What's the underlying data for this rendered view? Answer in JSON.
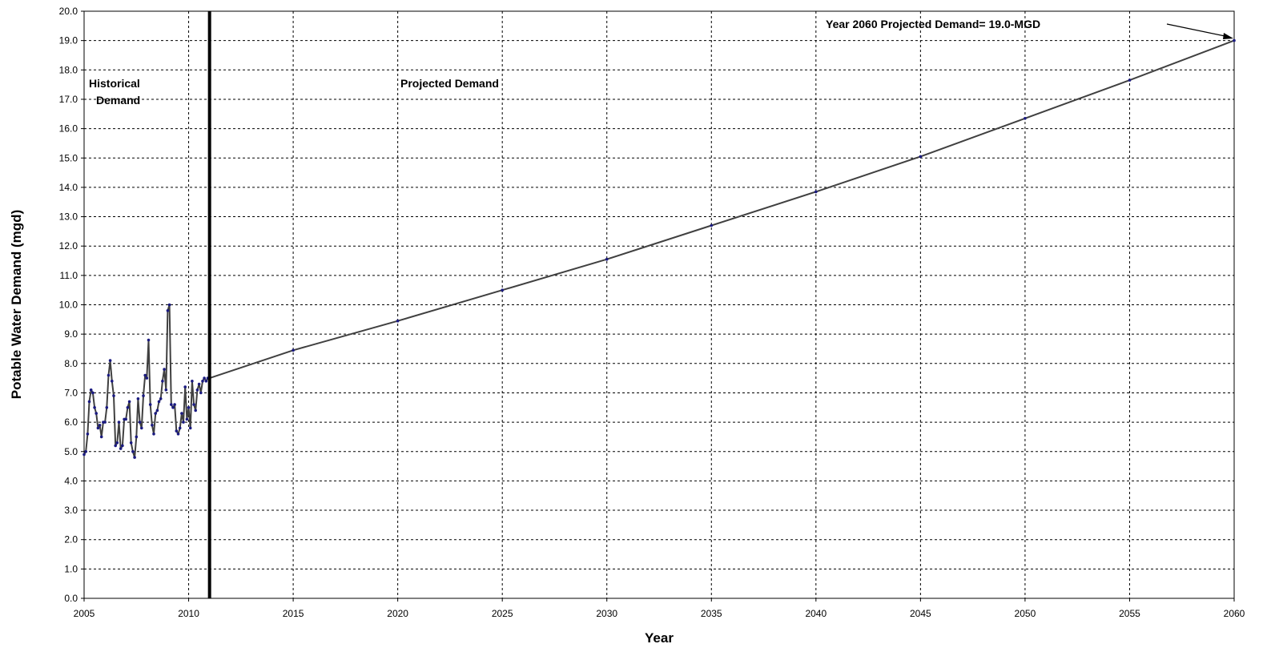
{
  "chart_data": {
    "type": "line",
    "xlabel": "Year",
    "ylabel": "Potable Water Demand (mgd)",
    "xlim": [
      2005,
      2060
    ],
    "ylim": [
      0,
      20
    ],
    "x_ticks": [
      2005,
      2010,
      2015,
      2020,
      2025,
      2030,
      2035,
      2040,
      2045,
      2050,
      2055,
      2060
    ],
    "y_ticks": [
      "0.0",
      "1.0",
      "2.0",
      "3.0",
      "4.0",
      "5.0",
      "6.0",
      "7.0",
      "8.0",
      "9.0",
      "10.0",
      "11.0",
      "12.0",
      "13.0",
      "14.0",
      "15.0",
      "16.0",
      "17.0",
      "18.0",
      "19.0",
      "20.0"
    ],
    "grid": true,
    "grid_style": "dashed",
    "divider_year": 2011,
    "annotations": {
      "historical": [
        "Historical",
        "Demand"
      ],
      "projected": "Projected Demand",
      "callout": "Year 2060 Projected Demand=  19.0-MGD"
    },
    "series": [
      {
        "role": "historical",
        "color": "#404040",
        "marker_color": "#1a1a80",
        "x": [
          2005.0,
          2005.083,
          2005.167,
          2005.25,
          2005.333,
          2005.417,
          2005.5,
          2005.583,
          2005.667,
          2005.75,
          2005.833,
          2005.917,
          2006.0,
          2006.083,
          2006.167,
          2006.25,
          2006.333,
          2006.417,
          2006.5,
          2006.583,
          2006.667,
          2006.75,
          2006.833,
          2006.917,
          2007.0,
          2007.083,
          2007.167,
          2007.25,
          2007.333,
          2007.417,
          2007.5,
          2007.583,
          2007.667,
          2007.75,
          2007.833,
          2007.917,
          2008.0,
          2008.083,
          2008.167,
          2008.25,
          2008.333,
          2008.417,
          2008.5,
          2008.583,
          2008.667,
          2008.75,
          2008.833,
          2008.917,
          2009.0,
          2009.083,
          2009.167,
          2009.25,
          2009.333,
          2009.417,
          2009.5,
          2009.583,
          2009.667,
          2009.75,
          2009.833,
          2009.917,
          2010.0,
          2010.083,
          2010.167,
          2010.25,
          2010.333,
          2010.417,
          2010.5,
          2010.583,
          2010.667,
          2010.75,
          2010.833,
          2010.917
        ],
        "y": [
          4.9,
          5.0,
          5.6,
          6.7,
          7.1,
          7.0,
          6.5,
          6.3,
          5.8,
          5.9,
          5.5,
          6.0,
          6.0,
          6.5,
          7.6,
          8.1,
          7.4,
          6.9,
          5.2,
          5.3,
          6.0,
          5.1,
          5.2,
          6.1,
          6.1,
          6.5,
          6.7,
          5.3,
          5.0,
          4.8,
          5.5,
          6.8,
          6.0,
          5.8,
          6.9,
          7.6,
          7.5,
          8.8,
          6.6,
          5.9,
          5.6,
          6.3,
          6.4,
          6.7,
          6.8,
          7.4,
          7.8,
          7.1,
          9.8,
          10.0,
          6.6,
          6.5,
          6.6,
          5.7,
          5.6,
          5.8,
          6.3,
          6.0,
          7.2,
          6.1,
          6.5,
          5.8,
          7.4,
          6.6,
          6.4,
          7.1,
          7.3,
          7.0,
          7.4,
          7.5,
          7.4,
          7.5
        ]
      },
      {
        "role": "projected",
        "color": "#404040",
        "marker_color": "#1a1a80",
        "x": [
          2011,
          2015,
          2020,
          2025,
          2030,
          2035,
          2040,
          2045,
          2050,
          2055,
          2060
        ],
        "y": [
          7.5,
          8.45,
          9.45,
          10.5,
          11.55,
          12.7,
          13.85,
          15.05,
          16.35,
          17.65,
          19.0
        ]
      }
    ]
  }
}
